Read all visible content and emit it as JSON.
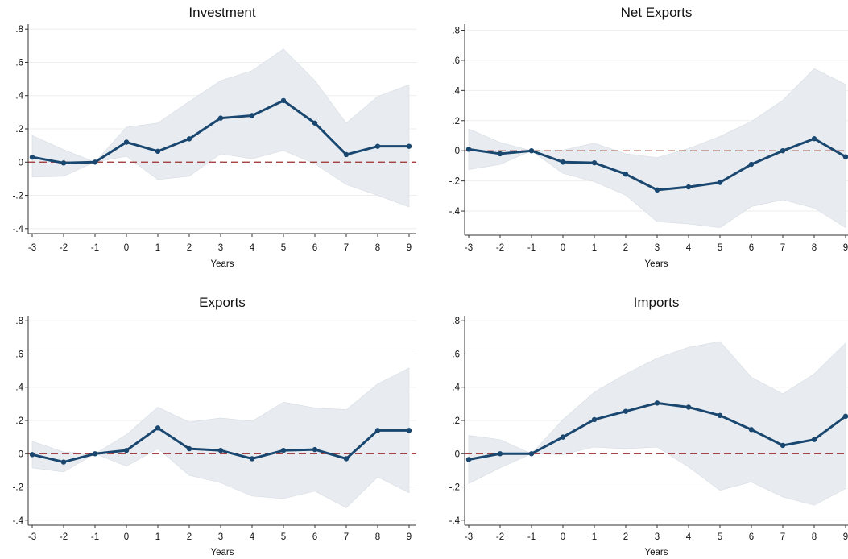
{
  "chart_data": [
    {
      "type": "line",
      "title": "Investment",
      "xlabel": "Years",
      "ylabel": "",
      "x": [
        -3,
        -2,
        -1,
        0,
        1,
        2,
        3,
        4,
        5,
        6,
        7,
        8,
        9
      ],
      "series": [
        {
          "values": [
            0.03,
            -0.005,
            0.0,
            0.12,
            0.065,
            0.14,
            0.265,
            0.28,
            0.37,
            0.235,
            0.045,
            0.095,
            0.095
          ],
          "lower": [
            -0.09,
            -0.085,
            0.0,
            0.035,
            -0.105,
            -0.085,
            0.05,
            0.02,
            0.07,
            -0.01,
            -0.135,
            -0.2,
            -0.27
          ],
          "upper": [
            0.16,
            0.075,
            0.0,
            0.21,
            0.235,
            0.365,
            0.49,
            0.55,
            0.68,
            0.49,
            0.235,
            0.395,
            0.465
          ]
        }
      ],
      "ylim": [
        -0.43,
        0.83
      ],
      "yticks": [
        -0.4,
        -0.2,
        0,
        0.2,
        0.4,
        0.6,
        0.8
      ],
      "ytick_labels": [
        "-.4",
        "-.2",
        "0",
        ".2",
        ".4",
        ".6",
        ".8"
      ],
      "xticks": [
        -3,
        -2,
        -1,
        0,
        1,
        2,
        3,
        4,
        5,
        6,
        7,
        8,
        9
      ],
      "reference_line": 0,
      "grid": true
    },
    {
      "type": "line",
      "title": "Net Exports",
      "xlabel": "Years",
      "ylabel": "",
      "x": [
        -3,
        -2,
        -1,
        0,
        1,
        2,
        3,
        4,
        5,
        6,
        7,
        8,
        9
      ],
      "series": [
        {
          "values": [
            0.01,
            -0.02,
            0.0,
            -0.075,
            -0.08,
            -0.155,
            -0.26,
            -0.24,
            -0.21,
            -0.09,
            0.0,
            0.08,
            -0.04
          ],
          "lower": [
            -0.125,
            -0.09,
            0.0,
            -0.15,
            -0.205,
            -0.295,
            -0.47,
            -0.485,
            -0.51,
            -0.37,
            -0.325,
            -0.38,
            -0.51
          ],
          "upper": [
            0.145,
            0.055,
            0.0,
            0.005,
            0.05,
            -0.02,
            -0.045,
            0.015,
            0.095,
            0.195,
            0.335,
            0.545,
            0.44
          ]
        }
      ],
      "ylim": [
        -0.56,
        0.84
      ],
      "yticks": [
        -0.4,
        -0.2,
        0,
        0.2,
        0.4,
        0.6,
        0.8
      ],
      "ytick_labels": [
        "-.4",
        "-.2",
        "0",
        ".2",
        ".4",
        ".6",
        ".8"
      ],
      "xticks": [
        -3,
        -2,
        -1,
        0,
        1,
        2,
        3,
        4,
        5,
        6,
        7,
        8,
        9
      ],
      "reference_line": 0,
      "grid": true
    },
    {
      "type": "line",
      "title": "Exports",
      "xlabel": "Years",
      "ylabel": "",
      "x": [
        -3,
        -2,
        -1,
        0,
        1,
        2,
        3,
        4,
        5,
        6,
        7,
        8,
        9
      ],
      "series": [
        {
          "values": [
            -0.005,
            -0.05,
            0.0,
            0.02,
            0.155,
            0.03,
            0.02,
            -0.03,
            0.02,
            0.025,
            -0.03,
            0.14,
            0.14
          ],
          "lower": [
            -0.085,
            -0.11,
            0.0,
            -0.075,
            0.03,
            -0.13,
            -0.175,
            -0.255,
            -0.27,
            -0.225,
            -0.325,
            -0.14,
            -0.235
          ],
          "upper": [
            0.075,
            0.01,
            0.0,
            0.115,
            0.28,
            0.19,
            0.215,
            0.195,
            0.31,
            0.275,
            0.265,
            0.42,
            0.515
          ]
        }
      ],
      "ylim": [
        -0.43,
        0.83
      ],
      "yticks": [
        -0.4,
        -0.2,
        0,
        0.2,
        0.4,
        0.6,
        0.8
      ],
      "ytick_labels": [
        "-.4",
        "-.2",
        "0",
        ".2",
        ".4",
        ".6",
        ".8"
      ],
      "xticks": [
        -3,
        -2,
        -1,
        0,
        1,
        2,
        3,
        4,
        5,
        6,
        7,
        8,
        9
      ],
      "reference_line": 0,
      "grid": true
    },
    {
      "type": "line",
      "title": "Imports",
      "xlabel": "Years",
      "ylabel": "",
      "x": [
        -3,
        -2,
        -1,
        0,
        1,
        2,
        3,
        4,
        5,
        6,
        7,
        8,
        9
      ],
      "series": [
        {
          "values": [
            -0.035,
            0.0,
            0.0,
            0.1,
            0.205,
            0.255,
            0.305,
            0.28,
            0.23,
            0.145,
            0.05,
            0.085,
            0.225
          ],
          "lower": [
            -0.18,
            -0.085,
            0.0,
            -0.005,
            0.04,
            0.03,
            0.04,
            -0.08,
            -0.22,
            -0.17,
            -0.26,
            -0.31,
            -0.21
          ],
          "upper": [
            0.11,
            0.085,
            0.0,
            0.205,
            0.37,
            0.48,
            0.575,
            0.64,
            0.675,
            0.46,
            0.36,
            0.48,
            0.665
          ]
        }
      ],
      "ylim": [
        -0.43,
        0.83
      ],
      "yticks": [
        -0.4,
        -0.2,
        0,
        0.2,
        0.4,
        0.6,
        0.8
      ],
      "ytick_labels": [
        "-.4",
        "-.2",
        "0",
        ".2",
        ".4",
        ".6",
        ".8"
      ],
      "xticks": [
        -3,
        -2,
        -1,
        0,
        1,
        2,
        3,
        4,
        5,
        6,
        7,
        8,
        9
      ],
      "reference_line": 0,
      "grid": true
    }
  ],
  "colors": {
    "line": "#1a476f",
    "band": "#e8ecf0",
    "band_stroke": "#d5dce3",
    "reference": "#9b2d2d",
    "grid": "#eeeeee",
    "axis": "#333333"
  }
}
